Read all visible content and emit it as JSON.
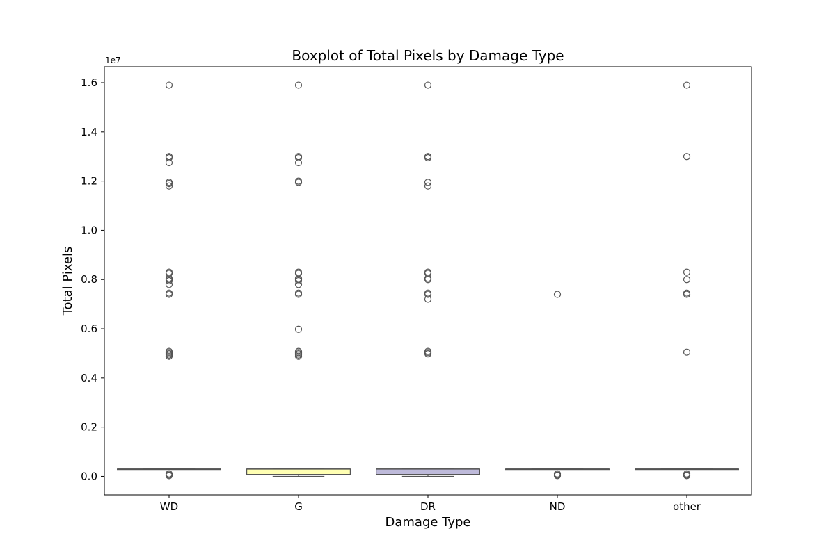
{
  "chart_data": {
    "type": "box",
    "title": "Boxplot of Total Pixels by Damage Type",
    "xlabel": "Damage Type",
    "ylabel": "Total Pixels",
    "y_offset_text": "1e7",
    "ylim": [
      -0.075,
      1.665
    ],
    "y_ticks": [
      0.0,
      0.2,
      0.4,
      0.6,
      0.8,
      1.0,
      1.2,
      1.4,
      1.6
    ],
    "y_tick_labels": [
      "0.0",
      "0.2",
      "0.4",
      "0.6",
      "0.8",
      "1.0",
      "1.2",
      "1.4",
      "1.6"
    ],
    "categories": [
      "WD",
      "G",
      "DR",
      "ND",
      "other"
    ],
    "colors": [
      "#8dd3c7",
      "#ffffb3",
      "#bebada",
      "#fb8072",
      "#80b1d3"
    ],
    "line_color": "#555555",
    "grid": false,
    "boxes": [
      {
        "category": "WD",
        "q1": 0.03,
        "median": 0.03,
        "q3": 0.03,
        "whisker_low": 0.03,
        "whisker_high": 0.03,
        "outliers": [
          1.59,
          1.3,
          1.295,
          1.275,
          1.195,
          1.19,
          1.18,
          0.83,
          0.825,
          0.805,
          0.8,
          0.795,
          0.78,
          0.745,
          0.74,
          0.508,
          0.503,
          0.498,
          0.493,
          0.488,
          0.01,
          0.006,
          0.003
        ]
      },
      {
        "category": "G",
        "q1": 0.008,
        "median": 0.03,
        "q3": 0.03,
        "whisker_low": 0.0,
        "whisker_high": 0.03,
        "outliers": [
          1.59,
          1.3,
          1.295,
          1.275,
          1.2,
          1.195,
          0.83,
          0.825,
          0.805,
          0.8,
          0.795,
          0.78,
          0.745,
          0.74,
          0.598,
          0.508,
          0.503,
          0.498,
          0.493,
          0.488
        ]
      },
      {
        "category": "DR",
        "q1": 0.008,
        "median": 0.03,
        "q3": 0.03,
        "whisker_low": 0.0,
        "whisker_high": 0.03,
        "outliers": [
          1.59,
          1.3,
          1.295,
          1.195,
          1.18,
          0.83,
          0.825,
          0.805,
          0.8,
          0.745,
          0.74,
          0.72,
          0.508,
          0.503,
          0.498
        ]
      },
      {
        "category": "ND",
        "q1": 0.03,
        "median": 0.03,
        "q3": 0.03,
        "whisker_low": 0.03,
        "whisker_high": 0.03,
        "outliers": [
          0.74,
          0.01,
          0.006,
          0.003
        ]
      },
      {
        "category": "other",
        "q1": 0.03,
        "median": 0.03,
        "q3": 0.03,
        "whisker_low": 0.03,
        "whisker_high": 0.03,
        "outliers": [
          1.59,
          1.3,
          0.83,
          0.8,
          0.745,
          0.74,
          0.505,
          0.01,
          0.006,
          0.003
        ]
      }
    ]
  }
}
